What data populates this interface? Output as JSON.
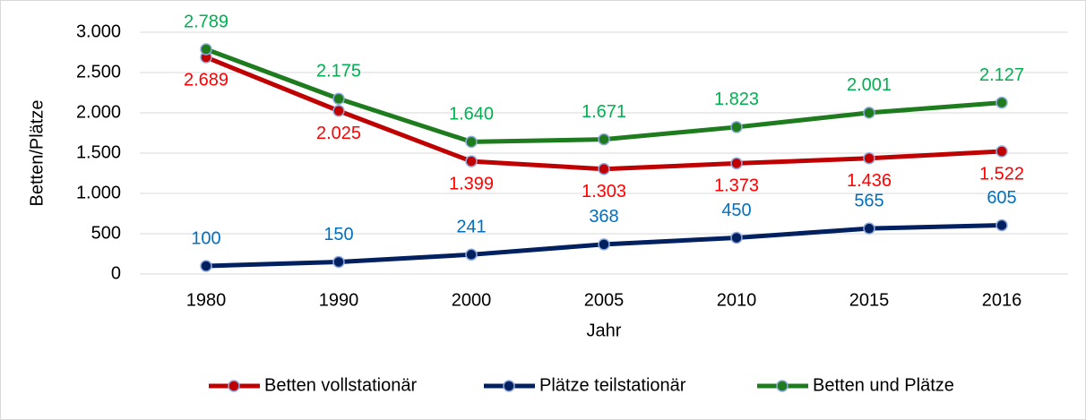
{
  "chart_data": {
    "type": "line",
    "xlabel": "Jahr",
    "ylabel": "Betten/Plätze",
    "categories": [
      "1980",
      "1990",
      "2000",
      "2005",
      "2010",
      "2015",
      "2016"
    ],
    "series": [
      {
        "name": "Betten vollstationär",
        "color": "#c00000",
        "label_color": "#ff0000",
        "label_side": "below",
        "values": [
          2689,
          2025,
          1399,
          1303,
          1373,
          1436,
          1522
        ],
        "value_labels": [
          "2.689",
          "2.025",
          "1.399",
          "1.303",
          "1.373",
          "1.436",
          "1.522"
        ]
      },
      {
        "name": "Plätze teilstationär",
        "color": "#002060",
        "label_color": "#0070c0",
        "label_side": "above",
        "values": [
          100,
          150,
          241,
          368,
          450,
          565,
          605
        ]
      },
      {
        "name": "Betten und Plätze",
        "color": "#1e7b1e",
        "label_color": "#00b050",
        "label_side": "above",
        "values": [
          2789,
          2175,
          1640,
          1671,
          1823,
          2001,
          2127
        ],
        "value_labels": [
          "2.789",
          "2.175",
          "1.640",
          "1.671",
          "1.823",
          "2.001",
          "2.127"
        ]
      }
    ],
    "ylim": [
      0,
      3000
    ],
    "yticks": [
      0,
      500,
      {
        "value": 1000,
        "label": "1.000"
      },
      {
        "value": 1500,
        "label": "1.500"
      },
      {
        "value": 2000,
        "label": "2.000"
      },
      {
        "value": 2500,
        "label": "2.500"
      },
      {
        "value": 3000,
        "label": "3.000"
      }
    ],
    "grid": true,
    "legend": "bottom"
  }
}
